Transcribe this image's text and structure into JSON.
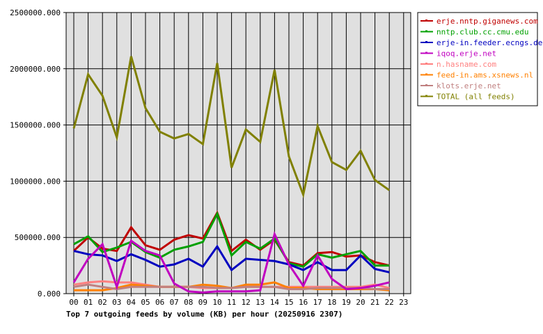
{
  "chart_data": {
    "type": "line",
    "title": "Top 7 outgoing feeds by volume (KB) per hour (20250916 2307)",
    "xlabel": "",
    "ylabel": "",
    "ylim": [
      0,
      2500000
    ],
    "yticks": [
      "0.000",
      "500000.000",
      "1000000.000",
      "1500000.000",
      "2000000.000",
      "2500000.000"
    ],
    "categories": [
      "00",
      "01",
      "02",
      "03",
      "04",
      "05",
      "06",
      "07",
      "08",
      "09",
      "10",
      "11",
      "12",
      "13",
      "14",
      "15",
      "16",
      "17",
      "18",
      "19",
      "20",
      "21",
      "22",
      "23"
    ],
    "grid": true,
    "legend_position": "right",
    "series": [
      {
        "name": "erje.nntp.giganews.com",
        "color": "#c00000",
        "values": [
          380000,
          500000,
          400000,
          380000,
          590000,
          430000,
          390000,
          480000,
          520000,
          490000,
          720000,
          380000,
          480000,
          390000,
          480000,
          280000,
          250000,
          360000,
          370000,
          330000,
          340000,
          280000,
          250000
        ]
      },
      {
        "name": "nntp.club.cc.cmu.edu",
        "color": "#00a000",
        "values": [
          440000,
          510000,
          370000,
          410000,
          460000,
          370000,
          320000,
          390000,
          420000,
          460000,
          710000,
          340000,
          460000,
          400000,
          490000,
          270000,
          240000,
          350000,
          320000,
          350000,
          380000,
          250000,
          250000
        ]
      },
      {
        "name": "erje-in.feeder.ecngs.de",
        "color": "#0000c0",
        "values": [
          380000,
          350000,
          340000,
          290000,
          350000,
          300000,
          240000,
          260000,
          310000,
          240000,
          420000,
          210000,
          310000,
          300000,
          290000,
          260000,
          210000,
          280000,
          210000,
          210000,
          340000,
          220000,
          190000
        ]
      },
      {
        "name": "iqoq.erje.net",
        "color": "#c000c0",
        "values": [
          100000,
          310000,
          440000,
          60000,
          470000,
          380000,
          340000,
          90000,
          20000,
          10000,
          20000,
          20000,
          20000,
          30000,
          530000,
          260000,
          70000,
          340000,
          130000,
          40000,
          50000,
          70000,
          100000
        ]
      },
      {
        "name": "n.hasname.com",
        "color": "#ff8080",
        "values": [
          80000,
          100000,
          110000,
          100000,
          100000,
          80000,
          60000,
          60000,
          60000,
          50000,
          50000,
          50000,
          60000,
          60000,
          60000,
          60000,
          60000,
          60000,
          60000,
          60000,
          60000,
          80000,
          50000
        ]
      },
      {
        "name": "feed-in.ams.xsnews.nl",
        "color": "#ff8000",
        "values": [
          30000,
          30000,
          30000,
          50000,
          80000,
          70000,
          60000,
          60000,
          60000,
          80000,
          70000,
          50000,
          80000,
          80000,
          100000,
          50000,
          50000,
          40000,
          40000,
          40000,
          40000,
          40000,
          30000
        ]
      },
      {
        "name": "klots.erje.net",
        "color": "#c08080",
        "values": [
          60000,
          80000,
          60000,
          40000,
          60000,
          60000,
          60000,
          60000,
          60000,
          60000,
          50000,
          50000,
          60000,
          60000,
          60000,
          40000,
          40000,
          50000,
          50000,
          50000,
          50000,
          40000,
          40000
        ]
      },
      {
        "name": "TOTAL (all feeds)",
        "color": "#808000",
        "values": [
          1470000,
          1950000,
          1760000,
          1390000,
          2110000,
          1650000,
          1440000,
          1380000,
          1420000,
          1330000,
          2050000,
          1120000,
          1460000,
          1350000,
          1990000,
          1220000,
          880000,
          1490000,
          1170000,
          1100000,
          1270000,
          1010000,
          920000
        ]
      }
    ]
  },
  "colors": {
    "plot_background": "#e0e0e0",
    "grid": "#000000"
  }
}
